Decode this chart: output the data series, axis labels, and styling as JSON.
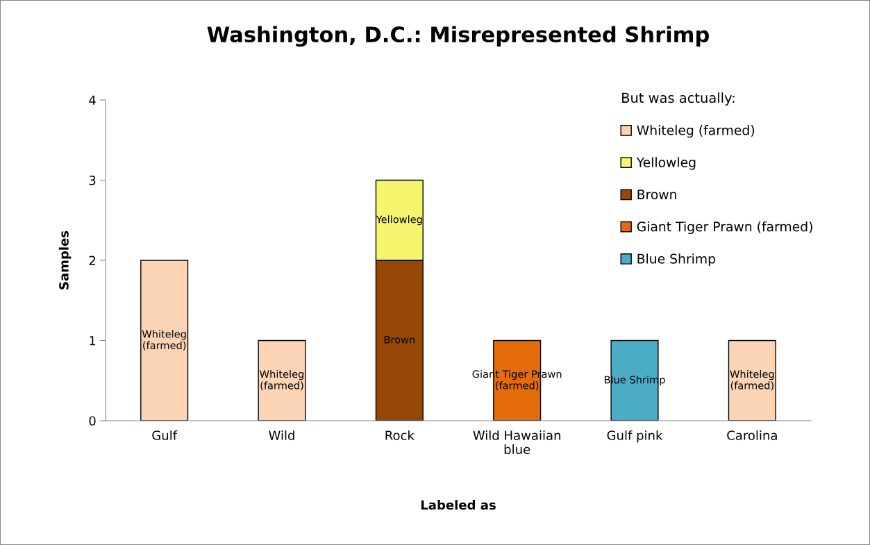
{
  "chart_data": {
    "type": "bar",
    "title": "Washington, D.C.: Misrepresented Shrimp",
    "xlabel": "Labeled as",
    "ylabel": "Samples",
    "legend_title": "But was actually:",
    "categories": [
      "Gulf",
      "Wild",
      "Rock",
      "Wild Hawaiian\nblue",
      "Gulf pink",
      "Carolina"
    ],
    "stacked": true,
    "ylim": [
      0,
      4
    ],
    "yticks": [
      0,
      1,
      2,
      3,
      4
    ],
    "grid": false,
    "legend": "top right",
    "series": [
      {
        "name": "Blue Shrimp",
        "color": "#4bacc6",
        "values": [
          null,
          null,
          null,
          null,
          1,
          null
        ],
        "value_labels": [
          null,
          null,
          null,
          null,
          "Blue Shrimp",
          null
        ]
      },
      {
        "name": "Giant Tiger Prawn (farmed)",
        "color": "#e46c0a",
        "values": [
          null,
          null,
          null,
          1,
          null,
          null
        ],
        "value_labels": [
          null,
          null,
          null,
          "Giant Tiger Prawn\n(farmed)",
          null,
          null
        ]
      },
      {
        "name": "Brown",
        "color": "#974706",
        "values": [
          null,
          null,
          2,
          null,
          null,
          null
        ],
        "value_labels": [
          null,
          null,
          "Brown",
          null,
          null,
          null
        ]
      },
      {
        "name": "Yellowleg",
        "color": "#f5f56e",
        "values": [
          null,
          null,
          1,
          null,
          null,
          null
        ],
        "value_labels": [
          null,
          null,
          "Yellowleg",
          null,
          null,
          null
        ]
      },
      {
        "name": "Whiteleg (farmed)",
        "color": "#fad4b4",
        "values": [
          2,
          1,
          null,
          null,
          null,
          1
        ],
        "value_labels": [
          "Whiteleg\n(farmed)",
          "Whiteleg\n(farmed)",
          null,
          null,
          null,
          "Whiteleg\n(farmed)"
        ]
      }
    ]
  }
}
